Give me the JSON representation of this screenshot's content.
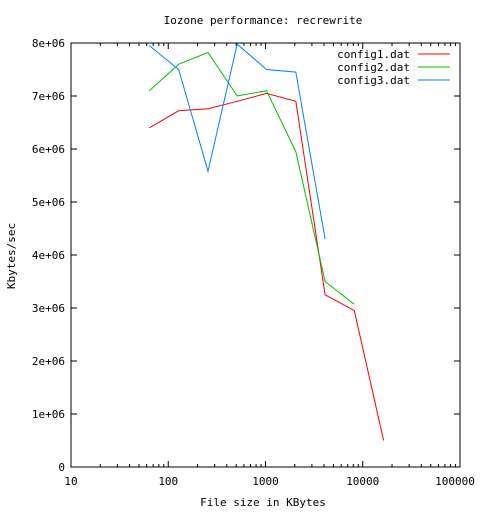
{
  "chart_data": {
    "type": "line",
    "title": "Iozone performance: recrewrite",
    "xlabel": "File size in KBytes",
    "ylabel": "Kbytes/sec",
    "x_scale": "log",
    "xlim": [
      10,
      100000
    ],
    "ylim": [
      0,
      8000000
    ],
    "x_ticks": [
      10,
      100,
      1000,
      10000,
      100000
    ],
    "x_tick_labels": [
      "10",
      "100",
      "1000",
      "10000",
      "100000"
    ],
    "y_ticks": [
      0,
      1000000,
      2000000,
      3000000,
      4000000,
      5000000,
      6000000,
      7000000,
      8000000
    ],
    "y_tick_labels": [
      "0",
      "1e+06",
      "2e+06",
      "3e+06",
      "4e+06",
      "5e+06",
      "6e+06",
      "7e+06",
      "8e+06"
    ],
    "grid": false,
    "legend_position": "top-right",
    "series": [
      {
        "name": "config1.dat",
        "color": "#ff0000",
        "x": [
          64,
          128,
          256,
          512,
          1024,
          2048,
          4096,
          8192,
          16384
        ],
        "y": [
          6400000,
          6720000,
          6760000,
          6900000,
          7050000,
          6900000,
          3250000,
          2950000,
          500000
        ]
      },
      {
        "name": "config2.dat",
        "color": "#00c000",
        "x": [
          64,
          128,
          256,
          512,
          1024,
          2048,
          4096,
          8192
        ],
        "y": [
          7100000,
          7600000,
          7820000,
          7000000,
          7100000,
          5950000,
          3500000,
          3070000
        ]
      },
      {
        "name": "config3.dat",
        "color": "#0080ff",
        "x": [
          64,
          128,
          256,
          512,
          1024,
          2048,
          4096
        ],
        "y": [
          7950000,
          7500000,
          5580000,
          7980000,
          7500000,
          7450000,
          4300000
        ]
      }
    ]
  }
}
